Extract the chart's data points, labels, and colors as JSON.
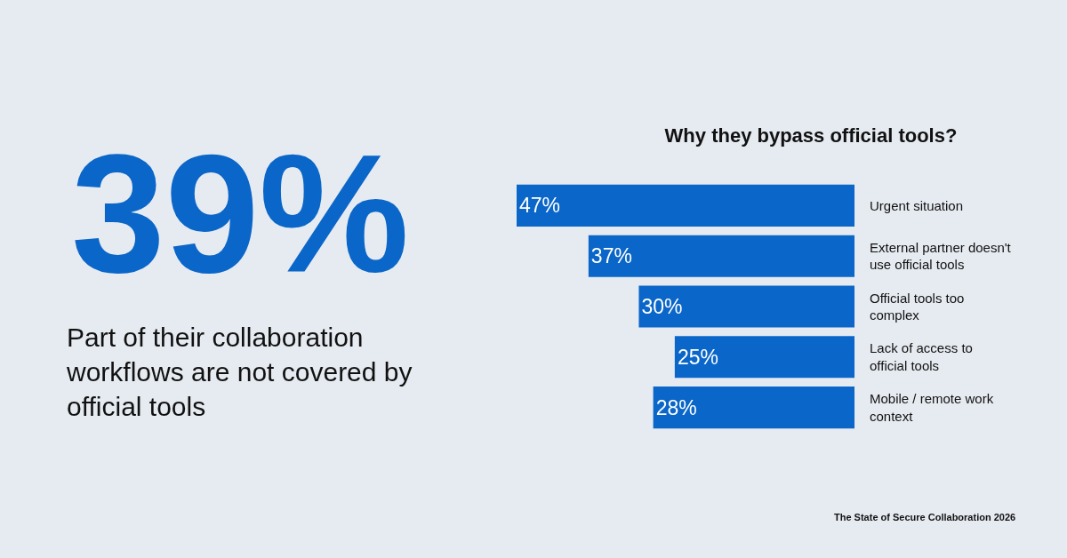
{
  "chart_data": {
    "type": "bar",
    "orientation": "horizontal",
    "title": "Why they bypass official tools?",
    "categories": [
      "Urgent situation",
      "External partner doesn't use official tools",
      "Official tools too complex",
      "Lack of access to official tools",
      "Mobile / remote work context"
    ],
    "values": [
      47,
      37,
      30,
      25,
      28
    ],
    "value_labels": [
      "47%",
      "37%",
      "30%",
      "25%",
      "28%"
    ],
    "color": "#0a66c8",
    "xlim": [
      47,
      0
    ],
    "tick_labels": "y",
    "grid": false,
    "annotations": [
      "39%",
      "Part of their collaboration workflows are not covered by official tools",
      "The State of Secure Collaboration 2026"
    ]
  }
}
